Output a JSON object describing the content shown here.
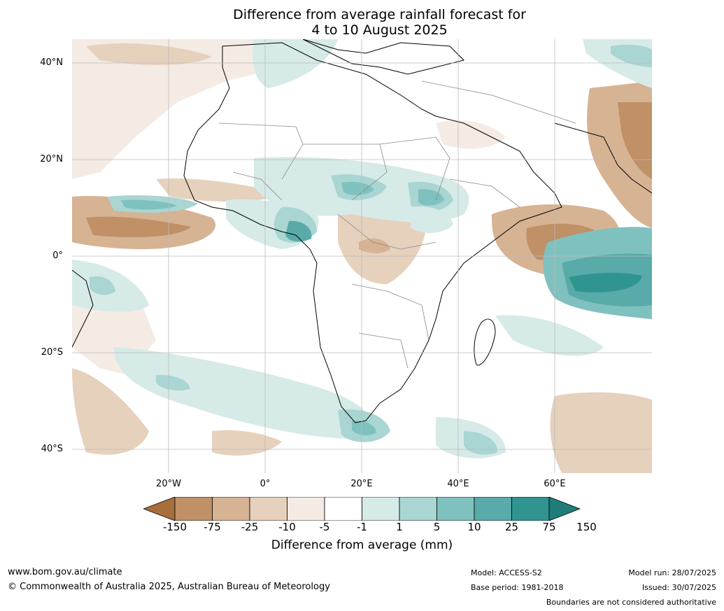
{
  "title_line1": "Difference from average rainfall forecast for",
  "title_line2": "4 to 10 August 2025",
  "lat_labels": [
    "40°N",
    "20°N",
    "0°",
    "20°S",
    "40°S"
  ],
  "lon_labels": [
    "20°W",
    "0°",
    "20°E",
    "40°E",
    "60°E"
  ],
  "colorbar": {
    "ticks": [
      "-150",
      "-75",
      "-25",
      "-10",
      "-5",
      "-1",
      "1",
      "5",
      "10",
      "25",
      "75",
      "150"
    ],
    "colors": [
      "#a86f3c",
      "#c09066",
      "#d6b393",
      "#e6d1bd",
      "#f3ebe4",
      "#ffffff",
      "#d6eae7",
      "#a9d5d2",
      "#7fc1bf",
      "#58aba9",
      "#309591",
      "#1f7d79"
    ],
    "label": "Difference from average (mm)"
  },
  "footer": {
    "website": "www.bom.gov.au/climate",
    "copyright": "© Commonwealth of Australia 2025, Australian Bureau of Meteorology",
    "model": "Model: ACCESS-S2",
    "base_period": "Base period: 1981-2018",
    "model_run": "Model run: 28/07/2025",
    "issued": "Issued: 30/07/2025",
    "boundaries_note": "Boundaries are not considered authoritative"
  }
}
